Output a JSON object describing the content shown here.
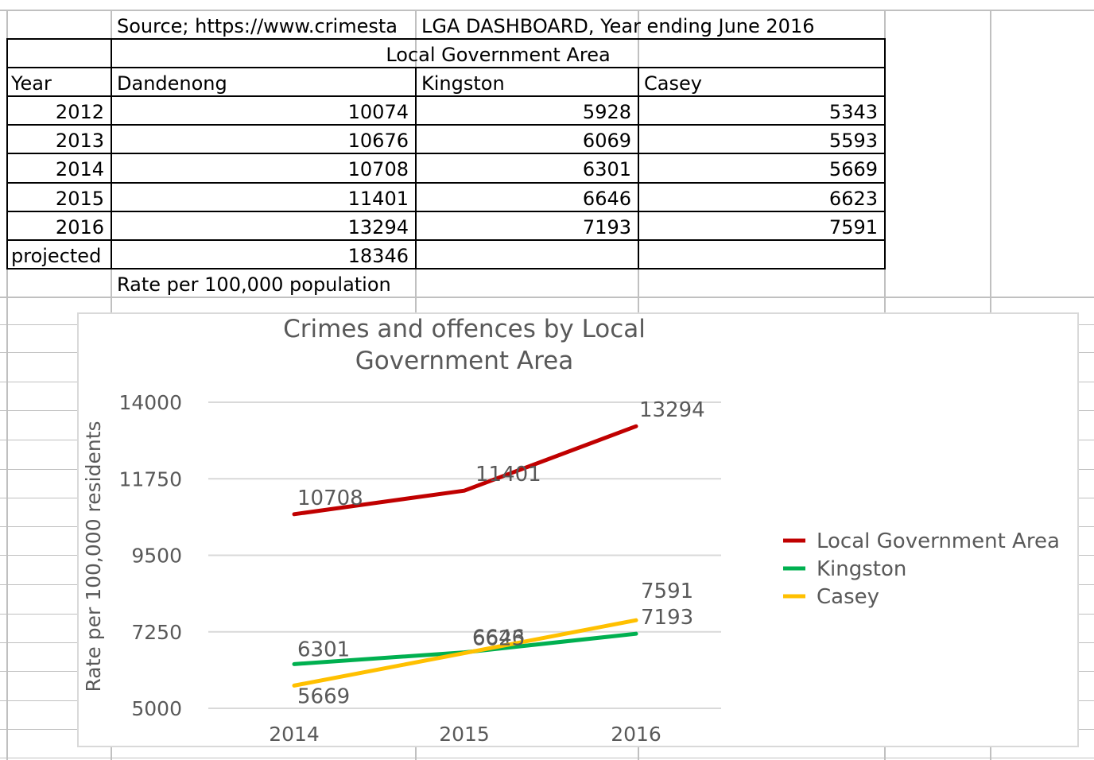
{
  "sheet": {
    "source": "Source; https://www.crimesta",
    "dashboard_title": "LGA DASHBOARD, Year ending June 2016",
    "group_header": "Local Government Area",
    "col_year": "Year",
    "col_a": "Dandenong",
    "col_b": "Kingston",
    "col_c": "Casey",
    "rows": [
      {
        "year": "2012",
        "a": "10074",
        "b": "5928",
        "c": "5343"
      },
      {
        "year": "2013",
        "a": "10676",
        "b": "6069",
        "c": "5593"
      },
      {
        "year": "2014",
        "a": "10708",
        "b": "6301",
        "c": "5669"
      },
      {
        "year": "2015",
        "a": "11401",
        "b": "6646",
        "c": "6623"
      },
      {
        "year": "2016",
        "a": "13294",
        "b": "7193",
        "c": "7591"
      }
    ],
    "projected_label": "projected",
    "projected_value": "18346",
    "note": "Rate per 100,000 population"
  },
  "chart_data": {
    "type": "line",
    "title": "Crimes and offences by Local Government Area",
    "title_lines": [
      "Crimes and offences by Local",
      "Government Area"
    ],
    "xlabel": "",
    "ylabel": "Rate per 100,000 residents",
    "categories": [
      "2014",
      "2015",
      "2016"
    ],
    "ylim": [
      5000,
      14000
    ],
    "yticks": [
      "14000",
      "11750",
      "9500",
      "7250",
      "5000"
    ],
    "ytick_values": [
      14000,
      11750,
      9500,
      7250,
      5000
    ],
    "grid": true,
    "legend_position": "right",
    "series": [
      {
        "name": "Local Government Area",
        "values": [
          10708,
          11401,
          13294
        ],
        "color": "#c00000"
      },
      {
        "name": "Kingston",
        "values": [
          6301,
          6646,
          7193
        ],
        "color": "#00b050"
      },
      {
        "name": "Casey",
        "values": [
          5669,
          6623,
          7591
        ],
        "color": "#ffc000"
      }
    ]
  }
}
